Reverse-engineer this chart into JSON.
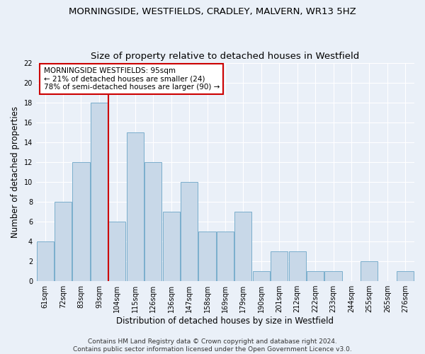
{
  "title1": "MORNINGSIDE, WESTFIELDS, CRADLEY, MALVERN, WR13 5HZ",
  "title2": "Size of property relative to detached houses in Westfield",
  "xlabel": "Distribution of detached houses by size in Westfield",
  "ylabel": "Number of detached properties",
  "bar_values": [
    4,
    8,
    12,
    18,
    6,
    15,
    12,
    7,
    10,
    5,
    5,
    7,
    1,
    3,
    3,
    1,
    1,
    0,
    2,
    0,
    1
  ],
  "bar_labels": [
    "61sqm",
    "72sqm",
    "83sqm",
    "93sqm",
    "104sqm",
    "115sqm",
    "126sqm",
    "136sqm",
    "147sqm",
    "158sqm",
    "169sqm",
    "179sqm",
    "190sqm",
    "201sqm",
    "212sqm",
    "222sqm",
    "233sqm",
    "244sqm",
    "255sqm",
    "265sqm",
    "276sqm"
  ],
  "bar_color": "#c8d8e8",
  "bar_edge_color": "#7aaecc",
  "bar_edge_width": 0.7,
  "vline_color": "#cc0000",
  "vline_x": 3.5,
  "annotation_text": "MORNINGSIDE WESTFIELDS: 95sqm\n← 21% of detached houses are smaller (24)\n78% of semi-detached houses are larger (90) →",
  "annotation_box_color": "#cc0000",
  "annotation_text_color": "#000000",
  "ylim": [
    0,
    22
  ],
  "yticks": [
    0,
    2,
    4,
    6,
    8,
    10,
    12,
    14,
    16,
    18,
    20,
    22
  ],
  "footnote": "Contains HM Land Registry data © Crown copyright and database right 2024.\nContains public sector information licensed under the Open Government Licence v3.0.",
  "background_color": "#eaf0f8",
  "plot_background_color": "#eaf0f8",
  "grid_color": "#ffffff",
  "title_fontsize": 9.5,
  "subtitle_fontsize": 9.5,
  "label_fontsize": 8.5,
  "tick_fontsize": 7,
  "footnote_fontsize": 6.5,
  "annotation_fontsize": 7.5
}
